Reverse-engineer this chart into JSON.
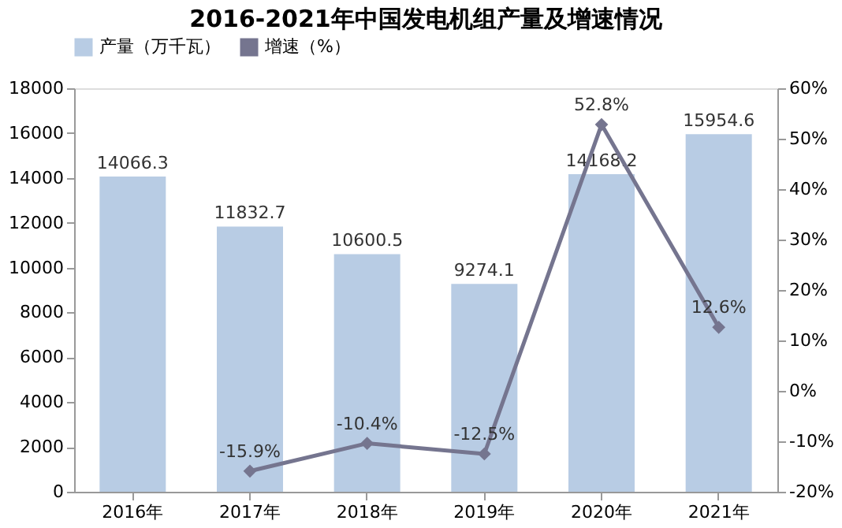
{
  "chart_data": {
    "type": "bar",
    "title": "2016-2021年中国发电机组产量及增速情况",
    "categories": [
      "2016年",
      "2017年",
      "2018年",
      "2019年",
      "2020年",
      "2021年"
    ],
    "series": [
      {
        "name": "产量（万千瓦）",
        "color": "#b8cce4",
        "values": [
          14066.3,
          11832.7,
          10600.5,
          9274.1,
          14168.2,
          15954.6
        ],
        "value_labels": [
          "14066.3",
          "11832.7",
          "10600.5",
          "9274.1",
          "14168.2",
          "15954.6"
        ]
      },
      {
        "name": "增速（%）",
        "type": "line",
        "axis": "y2",
        "color": "#75758f",
        "values": [
          null,
          -15.9,
          -10.4,
          -12.5,
          52.8,
          12.6
        ],
        "value_labels": [
          null,
          "-15.9%",
          "-10.4%",
          "-12.5%",
          "52.8%",
          "12.6%"
        ]
      }
    ],
    "ylim": [
      0,
      18000
    ],
    "yticks": [
      0,
      2000,
      4000,
      6000,
      8000,
      10000,
      12000,
      14000,
      16000,
      18000
    ],
    "y2lim": [
      -20,
      60
    ],
    "y2ticks": [
      {
        "value": -20,
        "label": "-20%"
      },
      {
        "value": -10,
        "label": "-10%"
      },
      {
        "value": 0,
        "label": "0%"
      },
      {
        "value": 10,
        "label": "10%"
      },
      {
        "value": 20,
        "label": "20%"
      },
      {
        "value": 30,
        "label": "30%"
      },
      {
        "value": 40,
        "label": "40%"
      },
      {
        "value": 50,
        "label": "50%"
      },
      {
        "value": 60,
        "label": "60%"
      }
    ],
    "marker": "diamond",
    "legend": "top",
    "grid": false
  }
}
